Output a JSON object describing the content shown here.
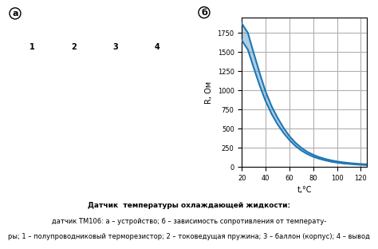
{
  "chart_data": {
    "type": "band",
    "x": [
      20,
      22,
      25,
      30,
      35,
      40,
      45,
      50,
      55,
      60,
      65,
      70,
      75,
      80,
      85,
      90,
      95,
      100,
      105,
      110,
      115,
      120,
      125
    ],
    "series": [
      {
        "values": [
          1870,
          1820,
          1750,
          1480,
          1220,
          980,
          790,
          640,
          510,
          400,
          315,
          248,
          196,
          157,
          127,
          103,
          85,
          70,
          59,
          50,
          43,
          37,
          33
        ]
      },
      {
        "values": [
          1650,
          1600,
          1530,
          1290,
          1060,
          855,
          690,
          555,
          443,
          350,
          273,
          213,
          167,
          132,
          106,
          85,
          68,
          55,
          45,
          38,
          32,
          27,
          23
        ]
      }
    ],
    "xlabel": "t,°C",
    "ylabel": "R, Ом",
    "xlim": [
      20,
      125
    ],
    "ylim": [
      0,
      1950
    ],
    "xticks": [
      20,
      40,
      60,
      80,
      100,
      120
    ],
    "yticks": [
      0,
      250,
      500,
      750,
      1000,
      1250,
      1500,
      1750
    ],
    "grid": true,
    "annotations": [
      "а",
      "б",
      "1",
      "2",
      "3",
      "4",
      "Датчик  температуры охлаждающей жидкости:",
      "датчик ТМ106: а – устройство; б – зависимость сопротивления от температу-",
      "ры; 1 – полупроводниковый терморезистор; 2 – токоведущая пружина; 3 – баллон (корпус); 4 – вывод"
    ]
  }
}
